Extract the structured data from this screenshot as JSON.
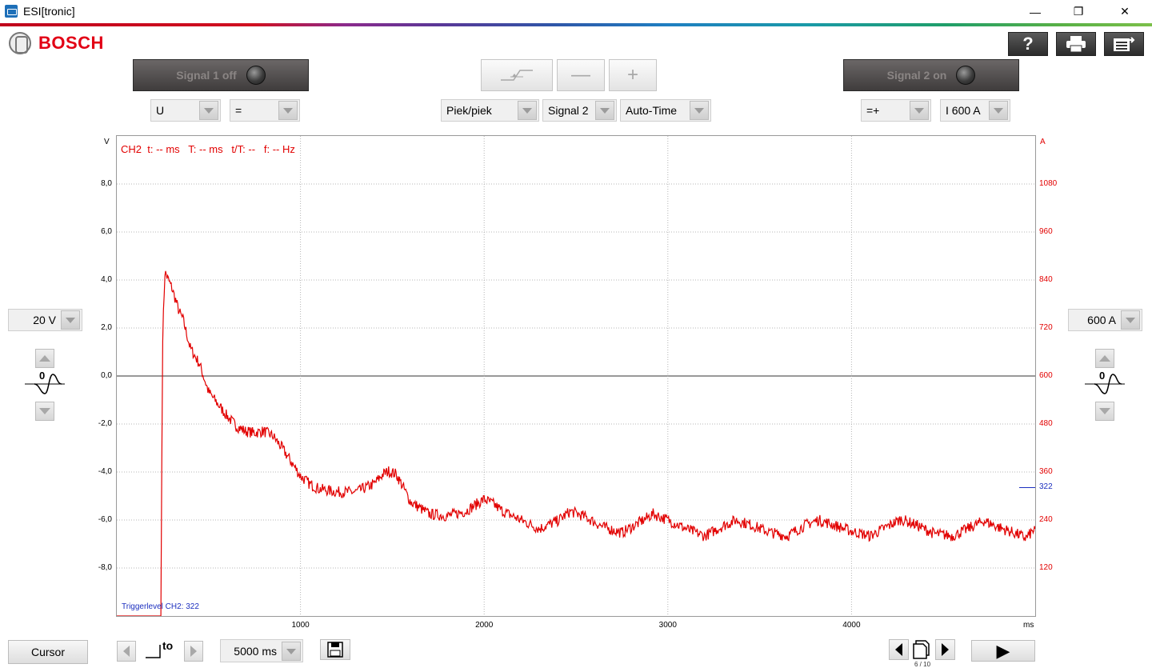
{
  "window": {
    "title": "ESI[tronic]",
    "controls": {
      "minimize": "—",
      "restore": "❐",
      "close": "✕"
    }
  },
  "brand": {
    "name": "BOSCH"
  },
  "toolbar_icons": [
    {
      "name": "help-icon",
      "glyph": "?"
    },
    {
      "name": "print-icon",
      "glyph": "🖶"
    },
    {
      "name": "list-export-icon",
      "glyph": "☰"
    }
  ],
  "signal1": {
    "label": "Signal 1 off"
  },
  "signal2": {
    "label": "Signal 2 on"
  },
  "trigger_controls": {
    "minus": "—",
    "plus": "+"
  },
  "dropdowns": {
    "ch1_quantity": "U",
    "ch1_coupling": "=",
    "measure_mode": "Piek/piek",
    "measure_source": "Signal 2",
    "time_mode": "Auto-Time",
    "ch2_coupling": "=+",
    "ch2_range": "I 600 A",
    "left_scale": "20 V",
    "right_scale": "600 A",
    "time_base": "5000 ms"
  },
  "chart_data": {
    "type": "line",
    "title": "",
    "left_unit": "V",
    "right_unit": "A",
    "x_unit": "ms",
    "xlim": [
      0,
      5000
    ],
    "ylim_left": [
      -10,
      10
    ],
    "ylim_right": [
      0,
      1200
    ],
    "left_ticks": [
      "8,0",
      "6,0",
      "4,0",
      "2,0",
      "0,0",
      "-2,0",
      "-4,0",
      "-6,0",
      "-8,0"
    ],
    "left_tick_values": [
      8,
      6,
      4,
      2,
      0,
      -2,
      -4,
      -6,
      -8
    ],
    "right_ticks": [
      "1080",
      "960",
      "840",
      "720",
      "600",
      "480",
      "360",
      "240",
      "120"
    ],
    "right_tick_values": [
      1080,
      960,
      840,
      720,
      600,
      480,
      360,
      240,
      120
    ],
    "x_ticks": [
      "1000",
      "2000",
      "3000",
      "4000"
    ],
    "x_tick_values": [
      1000,
      2000,
      3000,
      4000
    ],
    "grid": true,
    "series": [
      {
        "color": "#e20000",
        "axis": "right",
        "x": [
          0,
          240,
          245,
          250,
          262,
          300,
          340,
          360,
          400,
          450,
          500,
          600,
          650,
          700,
          750,
          800,
          850,
          900,
          950,
          1000,
          1050,
          1100,
          1200,
          1300,
          1400,
          1450,
          1480,
          1520,
          1550,
          1600,
          1700,
          1800,
          1900,
          2000,
          2050,
          2100,
          2200,
          2300,
          2400,
          2470,
          2550,
          2650,
          2750,
          2850,
          2920,
          3000,
          3100,
          3200,
          3300,
          3370,
          3450,
          3550,
          3650,
          3750,
          3820,
          3900,
          4000,
          4100,
          4200,
          4270,
          4350,
          4450,
          4550,
          4650,
          4720,
          4800,
          4900,
          4950,
          5000
        ],
        "y": [
          0,
          0,
          400,
          700,
          860,
          820,
          760,
          742,
          670,
          630,
          560,
          500,
          475,
          462,
          458,
          462,
          450,
          420,
          385,
          350,
          330,
          318,
          310,
          310,
          330,
          355,
          362,
          355,
          330,
          285,
          255,
          250,
          262,
          292,
          280,
          262,
          240,
          218,
          238,
          262,
          248,
          222,
          208,
          235,
          255,
          240,
          218,
          200,
          225,
          240,
          228,
          210,
          200,
          228,
          240,
          228,
          212,
          200,
          225,
          242,
          228,
          206,
          200,
          222,
          238,
          222,
          205,
          195,
          218
        ]
      }
    ],
    "trigger": {
      "value": 322,
      "label": "Triggerlevel CH2: 322",
      "color": "#1c2fbf"
    },
    "cursor_readout": "CH2  t: -- ms   T: -- ms   t/T: --   f: -- Hz"
  },
  "bottom": {
    "cursor_label": "Cursor",
    "t0_label": "to",
    "save_icon": "floppy-disk-icon",
    "page_indicator": "6 / 10",
    "play_glyph": "▶"
  }
}
